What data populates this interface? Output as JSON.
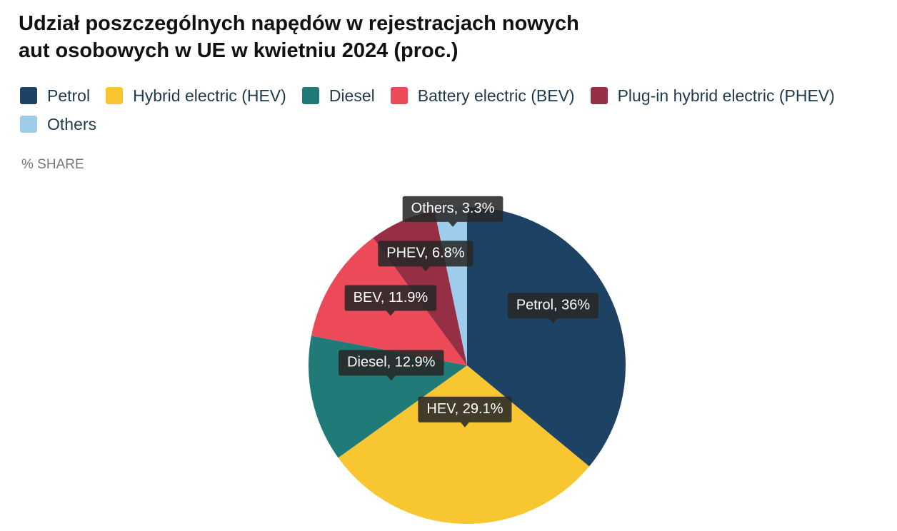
{
  "chart_data": {
    "type": "pie",
    "title": "Udział poszczególnych napędów w rejestracjach nowych aut osobowych w UE w kwietniu 2024 (proc.)",
    "subtitle": "% SHARE",
    "categories": [
      "Petrol",
      "Hybrid electric (HEV)",
      "Diesel",
      "Battery electric (BEV)",
      "Plug-in hybrid electric (PHEV)",
      "Others"
    ],
    "values": [
      36,
      29.1,
      12.9,
      11.9,
      6.8,
      3.3
    ],
    "value_labels": [
      "Petrol, 36%",
      "HEV, 29.1%",
      "Diesel, 12.9%",
      "BEV, 11.9%",
      "PHEV, 6.8%",
      "Others, 3.3%"
    ],
    "colors": [
      "#1d4263",
      "#f8c630",
      "#1f7a78",
      "#ec4a58",
      "#962e45",
      "#9ecdec"
    ]
  }
}
